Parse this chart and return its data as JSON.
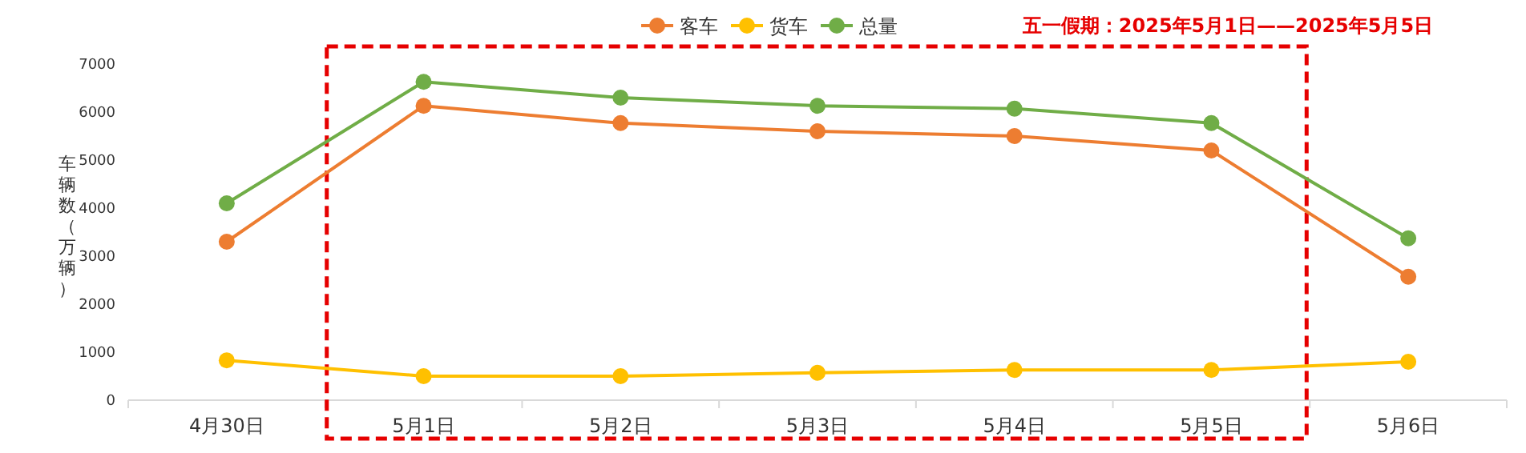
{
  "chart_data": {
    "type": "line",
    "ylabel": "车辆数（万辆）",
    "categories": [
      "4月30日",
      "5月1日",
      "5月2日",
      "5月3日",
      "5月4日",
      "5月5日",
      "5月6日"
    ],
    "series": [
      {
        "name": "客车",
        "color": "#ed7d31",
        "values": [
          3300,
          6130,
          5770,
          5600,
          5500,
          5200,
          2570
        ]
      },
      {
        "name": "货车",
        "color": "#ffc000",
        "values": [
          830,
          500,
          500,
          570,
          630,
          630,
          800
        ]
      },
      {
        "name": "总量",
        "color": "#70ad47",
        "values": [
          4100,
          6630,
          6300,
          6130,
          6070,
          5770,
          3370
        ]
      }
    ],
    "ylim": [
      0,
      7000
    ],
    "yticks": [
      0,
      1000,
      2000,
      3000,
      4000,
      5000,
      6000,
      7000
    ],
    "grid": false,
    "legend": "top",
    "marker": "circle",
    "line_style": "solid",
    "annotations": [
      "五一假期：2025年5月1日——2025年5月5日"
    ]
  }
}
